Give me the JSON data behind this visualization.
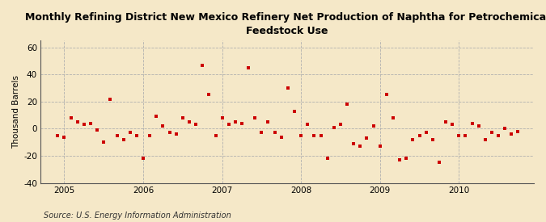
{
  "title": "Monthly Refining District New Mexico Refinery Net Production of Naphtha for Petrochemical\nFeedstock Use",
  "ylabel": "Thousand Barrels",
  "source": "Source: U.S. Energy Information Administration",
  "background_color": "#f5e8c8",
  "plot_background_color": "#f5e8c8",
  "marker_color": "#cc0000",
  "ylim": [
    -40,
    65
  ],
  "yticks": [
    -40,
    -20,
    0,
    20,
    40,
    60
  ],
  "x_values": [
    2004.917,
    2005.0,
    2005.083,
    2005.167,
    2005.25,
    2005.333,
    2005.417,
    2005.5,
    2005.583,
    2005.667,
    2005.75,
    2005.833,
    2005.917,
    2006.0,
    2006.083,
    2006.167,
    2006.25,
    2006.333,
    2006.417,
    2006.5,
    2006.583,
    2006.667,
    2006.75,
    2006.833,
    2006.917,
    2007.0,
    2007.083,
    2007.167,
    2007.25,
    2007.333,
    2007.417,
    2007.5,
    2007.583,
    2007.667,
    2007.75,
    2007.833,
    2007.917,
    2008.0,
    2008.083,
    2008.167,
    2008.25,
    2008.333,
    2008.417,
    2008.5,
    2008.583,
    2008.667,
    2008.75,
    2008.833,
    2008.917,
    2009.0,
    2009.083,
    2009.167,
    2009.25,
    2009.333,
    2009.417,
    2009.5,
    2009.583,
    2009.667,
    2009.75,
    2009.833,
    2009.917,
    2010.0,
    2010.083,
    2010.167,
    2010.25,
    2010.333,
    2010.417,
    2010.5,
    2010.583,
    2010.667,
    2010.75
  ],
  "y_values": [
    -5,
    -6,
    8,
    5,
    3,
    4,
    -1,
    -10,
    22,
    -5,
    -8,
    -3,
    -5,
    -22,
    -5,
    9,
    2,
    -3,
    -4,
    8,
    5,
    3,
    47,
    25,
    -5,
    8,
    3,
    5,
    4,
    45,
    8,
    -3,
    5,
    -3,
    -6,
    30,
    13,
    -5,
    3,
    -5,
    -5,
    -22,
    1,
    3,
    18,
    -11,
    -13,
    -7,
    2,
    -13,
    25,
    8,
    -23,
    -22,
    -8,
    -5,
    -3,
    -8,
    -25,
    5,
    3,
    -5,
    -5,
    4,
    2,
    -8,
    -3,
    -5,
    0,
    -4,
    -2
  ],
  "xlim": [
    2004.7,
    2010.95
  ],
  "xticks": [
    2005,
    2006,
    2007,
    2008,
    2009,
    2010
  ]
}
